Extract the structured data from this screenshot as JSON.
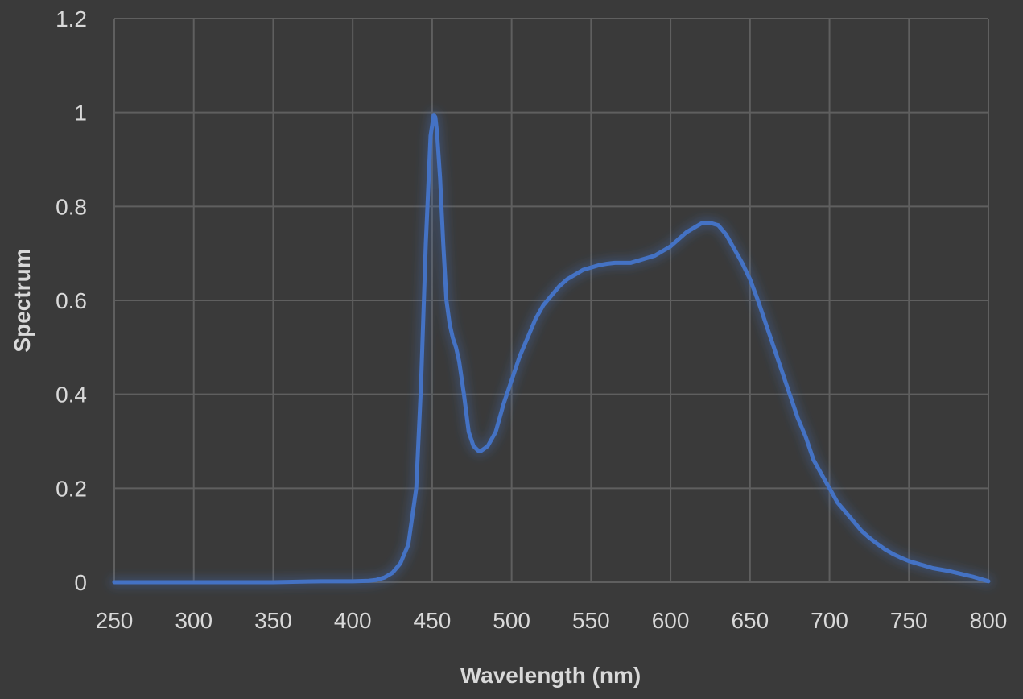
{
  "chart_data": {
    "type": "line",
    "title": "",
    "xlabel": "Wavelength (nm)",
    "ylabel": "Spectrum",
    "xlim": [
      250,
      800
    ],
    "ylim": [
      0,
      1.2
    ],
    "xticks": [
      250,
      300,
      350,
      400,
      450,
      500,
      550,
      600,
      650,
      700,
      750,
      800
    ],
    "yticks": [
      0,
      0.2,
      0.4,
      0.6,
      0.8,
      1,
      1.2
    ],
    "ytick_labels": [
      "0",
      "0.2",
      "0.4",
      "0.6",
      "0.8",
      "1",
      "1.2"
    ],
    "grid": true,
    "legend": "none",
    "series": [
      {
        "color": "#4472c4",
        "x": [
          250,
          300,
          350,
          380,
          400,
          410,
          415,
          420,
          425,
          430,
          435,
          440,
          443,
          446,
          449,
          451,
          452,
          453,
          455,
          457,
          459,
          461,
          463,
          465,
          467,
          470,
          473,
          476,
          479,
          481,
          485,
          490,
          495,
          500,
          505,
          510,
          515,
          520,
          525,
          530,
          535,
          540,
          545,
          550,
          555,
          560,
          565,
          570,
          575,
          580,
          585,
          590,
          595,
          600,
          605,
          610,
          615,
          620,
          625,
          630,
          635,
          640,
          645,
          650,
          655,
          660,
          665,
          670,
          675,
          680,
          685,
          690,
          695,
          700,
          705,
          710,
          715,
          720,
          725,
          730,
          735,
          740,
          745,
          750,
          755,
          760,
          765,
          770,
          775,
          780,
          785,
          790,
          795,
          800
        ],
        "y": [
          0,
          0,
          0,
          0.002,
          0.002,
          0.003,
          0.005,
          0.01,
          0.02,
          0.04,
          0.08,
          0.2,
          0.42,
          0.72,
          0.95,
          0.995,
          0.99,
          0.96,
          0.86,
          0.72,
          0.6,
          0.55,
          0.52,
          0.5,
          0.47,
          0.4,
          0.32,
          0.29,
          0.28,
          0.28,
          0.29,
          0.32,
          0.38,
          0.43,
          0.48,
          0.52,
          0.56,
          0.59,
          0.61,
          0.63,
          0.645,
          0.655,
          0.665,
          0.67,
          0.675,
          0.678,
          0.68,
          0.68,
          0.68,
          0.685,
          0.69,
          0.695,
          0.705,
          0.715,
          0.73,
          0.745,
          0.755,
          0.765,
          0.765,
          0.76,
          0.74,
          0.71,
          0.68,
          0.645,
          0.6,
          0.55,
          0.5,
          0.45,
          0.4,
          0.35,
          0.31,
          0.26,
          0.23,
          0.2,
          0.17,
          0.15,
          0.13,
          0.11,
          0.095,
          0.082,
          0.07,
          0.06,
          0.052,
          0.045,
          0.04,
          0.035,
          0.03,
          0.027,
          0.024,
          0.02,
          0.016,
          0.012,
          0.007,
          0.002
        ]
      }
    ]
  }
}
